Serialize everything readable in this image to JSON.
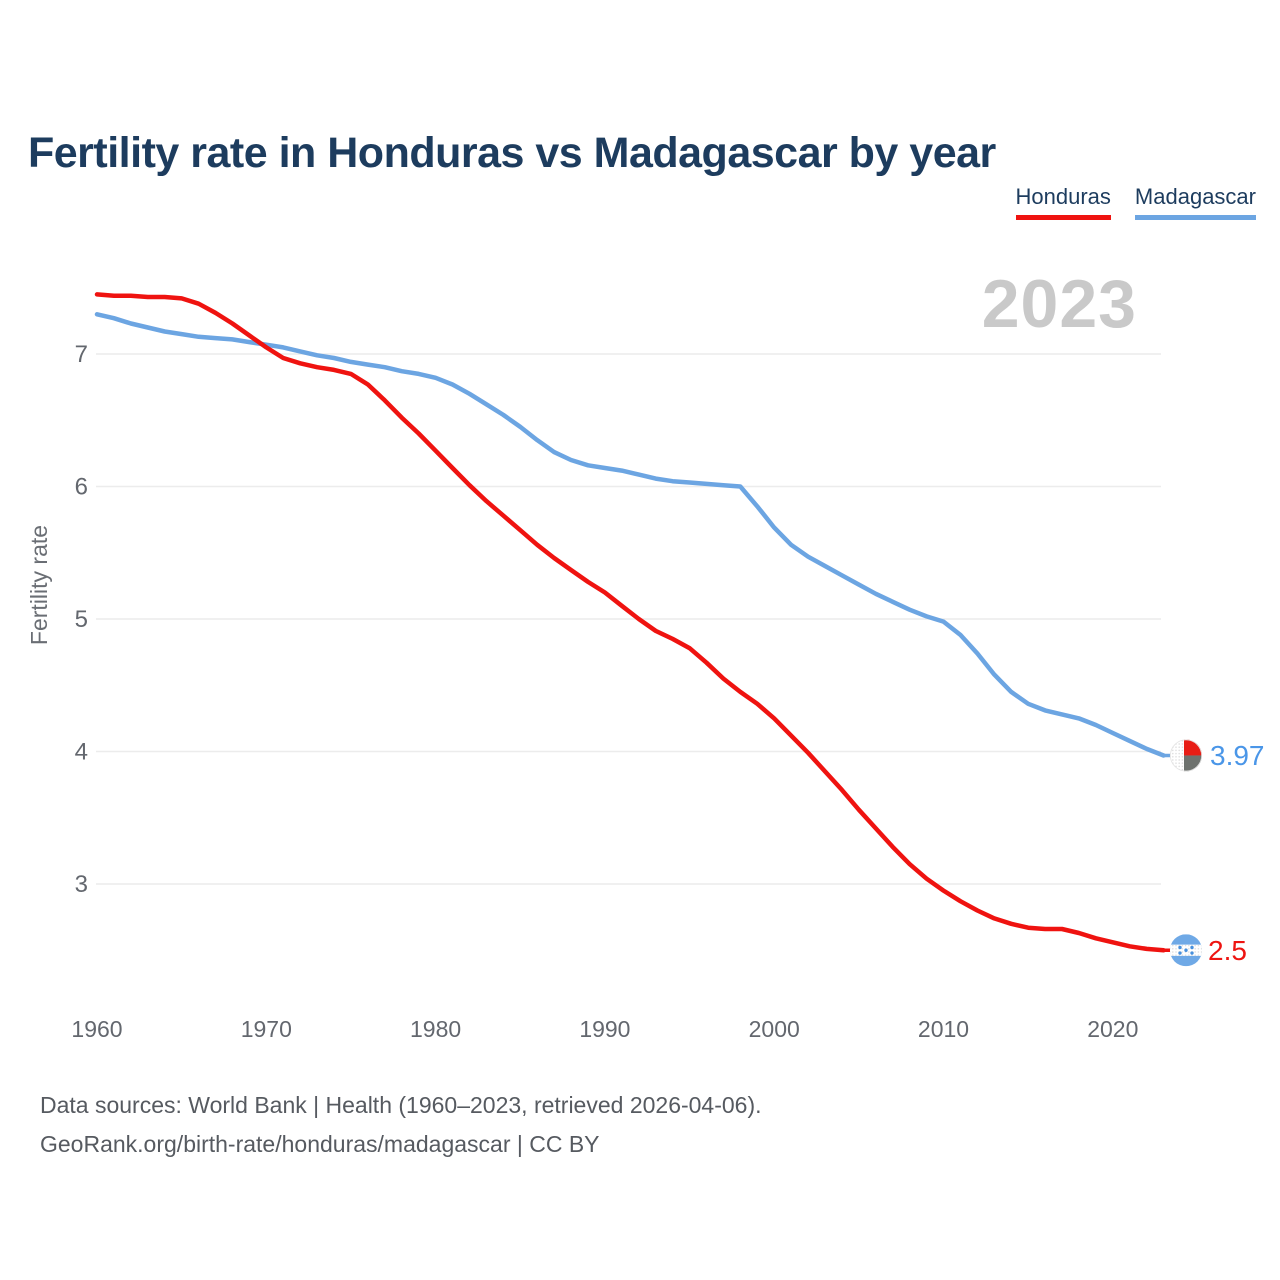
{
  "title": "Fertility rate in Honduras vs Madagascar by year",
  "watermark": "2023",
  "legend": {
    "honduras_label": "Honduras",
    "madagascar_label": "Madagascar"
  },
  "colors": {
    "honduras_line": "#ef1310",
    "madagascar_line": "#6ca5e2",
    "honduras_value_label": "#ee1411",
    "madagascar_value_label": "#4a96e8",
    "flag_blue": "#6fa9e6",
    "flag_star_blue": "#4790dd",
    "flag_red": "#e81d15",
    "flag_green_gray": "#6e726e",
    "grid": "#ececec",
    "axis_text": "#63676e",
    "watermark": "#c9c9c9",
    "title_text": "#1d3c5e"
  },
  "end_labels": {
    "madagascar": {
      "value": "3.97",
      "flag": "madagascar-flag"
    },
    "honduras": {
      "value": "2.5",
      "flag": "honduras-flag"
    }
  },
  "footer": {
    "line1": "Data sources: World Bank | Health (1960–2023, retrieved 2026-04-06).",
    "line2": "GeoRank.org/birth-rate/honduras/madagascar | CC BY"
  },
  "chart_data": {
    "type": "line",
    "title": "Fertility rate in Honduras vs Madagascar by year",
    "xlabel": "",
    "ylabel": "Fertility rate",
    "grid": "horizontal",
    "legend_position": "top-right",
    "xlim": [
      1960,
      2023
    ],
    "ylim": [
      2.2,
      7.6
    ],
    "yticks": [
      7,
      6,
      5,
      4,
      3
    ],
    "xticks": [
      1960,
      1970,
      1980,
      1990,
      2000,
      2010,
      2020
    ],
    "x": [
      1960,
      1961,
      1962,
      1963,
      1964,
      1965,
      1966,
      1967,
      1968,
      1969,
      1970,
      1971,
      1972,
      1973,
      1974,
      1975,
      1976,
      1977,
      1978,
      1979,
      1980,
      1981,
      1982,
      1983,
      1984,
      1985,
      1986,
      1987,
      1988,
      1989,
      1990,
      1991,
      1992,
      1993,
      1994,
      1995,
      1996,
      1997,
      1998,
      1999,
      2000,
      2001,
      2002,
      2003,
      2004,
      2005,
      2006,
      2007,
      2008,
      2009,
      2010,
      2011,
      2012,
      2013,
      2014,
      2015,
      2016,
      2017,
      2018,
      2019,
      2020,
      2021,
      2022,
      2023
    ],
    "series": [
      {
        "name": "Honduras",
        "end_value": 2.5,
        "values": [
          7.45,
          7.44,
          7.44,
          7.43,
          7.43,
          7.42,
          7.38,
          7.31,
          7.23,
          7.14,
          7.05,
          6.97,
          6.93,
          6.9,
          6.88,
          6.85,
          6.77,
          6.65,
          6.52,
          6.4,
          6.27,
          6.14,
          6.01,
          5.89,
          5.78,
          5.67,
          5.56,
          5.46,
          5.37,
          5.28,
          5.2,
          5.1,
          5.0,
          4.91,
          4.85,
          4.78,
          4.67,
          4.55,
          4.45,
          4.36,
          4.25,
          4.12,
          3.99,
          3.85,
          3.71,
          3.56,
          3.42,
          3.28,
          3.15,
          3.04,
          2.95,
          2.87,
          2.8,
          2.74,
          2.7,
          2.67,
          2.66,
          2.66,
          2.63,
          2.59,
          2.56,
          2.53,
          2.51,
          2.5
        ]
      },
      {
        "name": "Madagascar",
        "end_value": 3.97,
        "values": [
          7.3,
          7.27,
          7.23,
          7.2,
          7.17,
          7.15,
          7.13,
          7.12,
          7.11,
          7.09,
          7.07,
          7.05,
          7.02,
          6.99,
          6.97,
          6.94,
          6.92,
          6.9,
          6.87,
          6.85,
          6.82,
          6.77,
          6.7,
          6.62,
          6.54,
          6.45,
          6.35,
          6.26,
          6.2,
          6.16,
          6.14,
          6.12,
          6.09,
          6.06,
          6.04,
          6.03,
          6.02,
          6.01,
          6.0,
          5.85,
          5.69,
          5.56,
          5.47,
          5.4,
          5.33,
          5.26,
          5.19,
          5.13,
          5.07,
          5.02,
          4.98,
          4.88,
          4.74,
          4.58,
          4.45,
          4.36,
          4.31,
          4.28,
          4.25,
          4.2,
          4.14,
          4.08,
          4.02,
          3.97
        ]
      }
    ]
  }
}
